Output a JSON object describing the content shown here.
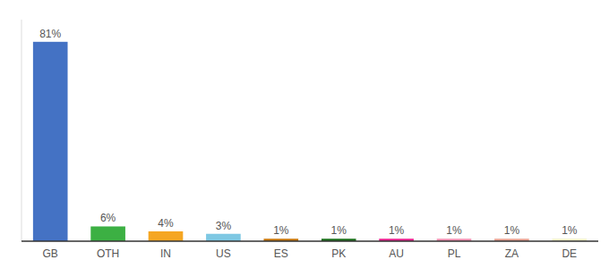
{
  "chart_data": {
    "type": "bar",
    "categories": [
      "GB",
      "OTH",
      "IN",
      "US",
      "ES",
      "PK",
      "AU",
      "PL",
      "ZA",
      "DE"
    ],
    "values": [
      81,
      6,
      4,
      3,
      1,
      1,
      1,
      1,
      1,
      1
    ],
    "value_labels": [
      "81%",
      "6%",
      "4%",
      "3%",
      "1%",
      "1%",
      "1%",
      "1%",
      "1%",
      "1%"
    ],
    "colors": [
      "#4472c4",
      "#3cb043",
      "#f5a623",
      "#7ec8e3",
      "#c8760a",
      "#1a6e1a",
      "#e91e8c",
      "#f48fb1",
      "#e8a090",
      "#f0f0c8"
    ],
    "ylim": [
      0,
      90
    ],
    "data_labels": true,
    "tick_labels": "x",
    "grid": false
  }
}
